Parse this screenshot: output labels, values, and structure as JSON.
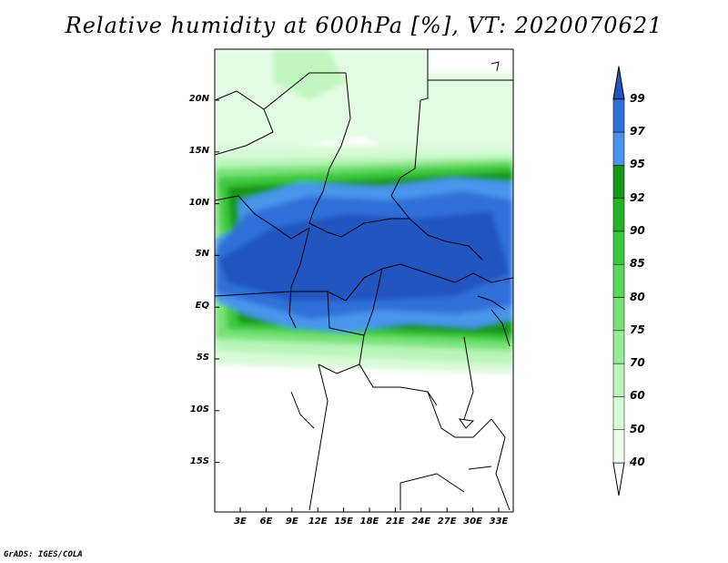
{
  "title": "Relative humidity at 600hPa [%], VT: 2020070621",
  "credit": "GrADS: IGES/COLA",
  "lat_labels": [
    "20N",
    "15N",
    "10N",
    "5N",
    "EQ",
    "5S",
    "10S",
    "15S"
  ],
  "lon_labels": [
    "3E",
    "6E",
    "9E",
    "12E",
    "15E",
    "18E",
    "21E",
    "24E",
    "27E",
    "30E",
    "33E"
  ],
  "colorbar": {
    "levels": [
      "40",
      "50",
      "60",
      "70",
      "75",
      "80",
      "85",
      "90",
      "92",
      "95",
      "97",
      "99"
    ],
    "colors": [
      "#f0fff0",
      "#d7fad7",
      "#b9f5b9",
      "#96ec96",
      "#78e278",
      "#58d758",
      "#3cc83c",
      "#26b026",
      "#169616",
      "#4a94ec",
      "#2e70d8",
      "#2254c0"
    ]
  }
}
